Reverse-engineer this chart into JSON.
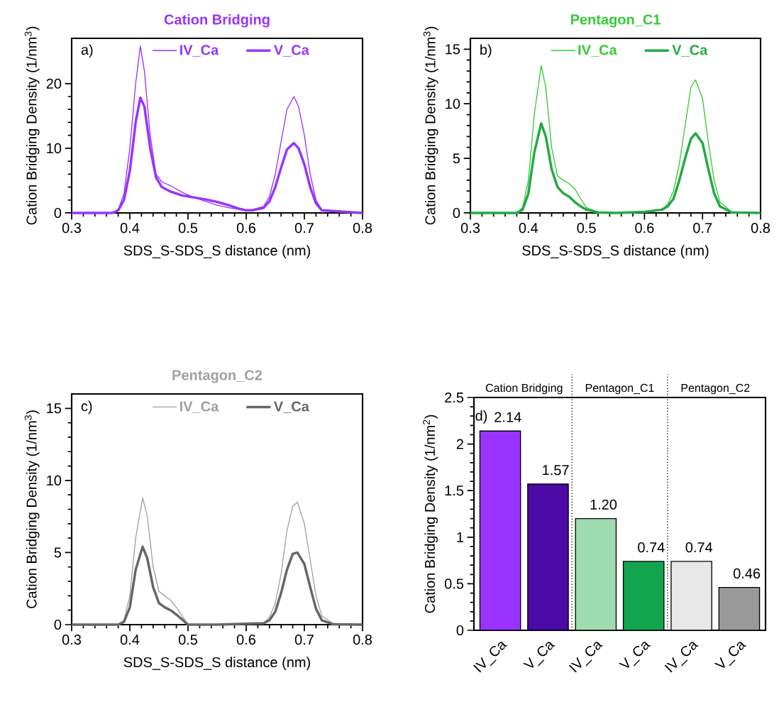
{
  "chart_data": [
    {
      "type": "line",
      "title": "Cation Bridging",
      "xlabel": "SDS_S-SDS_S distance (nm)",
      "ylabel": "Cation Bridging Density (1/nm$^{3}$)",
      "x": [
        0.3,
        0.37,
        0.38,
        0.39,
        0.4,
        0.41,
        0.418,
        0.425,
        0.435,
        0.445,
        0.455,
        0.47,
        0.49,
        0.51,
        0.53,
        0.55,
        0.57,
        0.59,
        0.6,
        0.61,
        0.63,
        0.64,
        0.65,
        0.66,
        0.67,
        0.682,
        0.69,
        0.7,
        0.71,
        0.72,
        0.73,
        0.8
      ],
      "series": [
        {
          "name": "IV_Ca",
          "color": "#9933ff",
          "values": [
            0,
            0,
            0.5,
            3,
            10,
            20,
            25.8,
            22,
            12,
            6,
            4.8,
            4.2,
            3.2,
            2.4,
            1.8,
            1.2,
            0.8,
            0.5,
            0.4,
            0.5,
            1,
            2.5,
            6,
            11,
            16,
            18,
            16.5,
            12,
            6,
            2,
            0.5,
            0
          ]
        },
        {
          "name": "V_Ca",
          "color": "#9933ff",
          "values": [
            0,
            0,
            0.4,
            2,
            6.5,
            14,
            17.8,
            16.5,
            10,
            5.5,
            4.0,
            3.3,
            2.7,
            2.4,
            2.1,
            1.7,
            1.2,
            0.6,
            0.4,
            0.4,
            0.8,
            1.8,
            4,
            7,
            9.8,
            10.8,
            10,
            7.5,
            4,
            1.5,
            0.4,
            0
          ]
        }
      ],
      "xlim": [
        0.3,
        0.8
      ],
      "xticks": [
        0.3,
        0.4,
        0.5,
        0.6,
        0.7,
        0.8
      ],
      "ylim": [
        0,
        27
      ],
      "yticks": [
        0,
        10,
        20
      ],
      "legend": "top",
      "annotations": [
        "a)"
      ]
    },
    {
      "type": "line",
      "title": "Pentagon_C1",
      "xlabel": "SDS_S-SDS_S distance (nm)",
      "ylabel": "Cation Bridging Density (1/nm$^{3}$)",
      "x": [
        0.3,
        0.38,
        0.39,
        0.4,
        0.41,
        0.422,
        0.43,
        0.44,
        0.45,
        0.46,
        0.47,
        0.48,
        0.49,
        0.5,
        0.52,
        0.55,
        0.6,
        0.63,
        0.64,
        0.65,
        0.66,
        0.67,
        0.68,
        0.688,
        0.7,
        0.71,
        0.72,
        0.73,
        0.75,
        0.8
      ],
      "series": [
        {
          "name": "IV_Ca",
          "color": "#33cc33",
          "values": [
            0,
            0,
            0.5,
            3,
            9,
            13.5,
            11.5,
            6,
            3.4,
            3,
            2.7,
            2.2,
            1.3,
            0.5,
            0.05,
            0,
            0.1,
            0.3,
            0.8,
            2,
            4.5,
            8,
            11.5,
            12.2,
            10.5,
            6.5,
            3,
            1,
            0.1,
            0
          ]
        },
        {
          "name": "V_Ca",
          "color": "#22aa44",
          "values": [
            0,
            0,
            0.3,
            1.8,
            5.5,
            8.2,
            7,
            4,
            2.4,
            1.8,
            1.5,
            1.0,
            0.6,
            0.3,
            0.05,
            0,
            0.1,
            0.3,
            0.6,
            1.3,
            3,
            5,
            6.8,
            7.3,
            6.4,
            4,
            1.8,
            0.6,
            0.05,
            0
          ]
        }
      ],
      "xlim": [
        0.3,
        0.8
      ],
      "xticks": [
        0.3,
        0.4,
        0.5,
        0.6,
        0.7,
        0.8
      ],
      "ylim": [
        0,
        16
      ],
      "yticks": [
        0,
        5,
        10,
        15
      ],
      "legend": "top",
      "annotations": [
        "b)"
      ]
    },
    {
      "type": "line",
      "title": "Pentagon_C2",
      "xlabel": "SDS_S-SDS_S distance (nm)",
      "ylabel": "Cation Bridging Density (1/nm$^{3}$)",
      "x": [
        0.3,
        0.38,
        0.39,
        0.4,
        0.41,
        0.422,
        0.43,
        0.44,
        0.45,
        0.46,
        0.47,
        0.48,
        0.49,
        0.5,
        0.55,
        0.63,
        0.64,
        0.65,
        0.66,
        0.67,
        0.68,
        0.688,
        0.7,
        0.71,
        0.72,
        0.73,
        0.75,
        0.8
      ],
      "series": [
        {
          "name": "IV_Ca",
          "color": "#a0a0a0",
          "values": [
            0,
            0,
            0.3,
            2,
            6,
            8.8,
            7.5,
            4,
            2.3,
            2,
            1.7,
            1.2,
            0.6,
            0,
            0,
            0.1,
            0.5,
            1.5,
            3.5,
            6.5,
            8.2,
            8.5,
            7,
            4.5,
            2,
            0.6,
            0.05,
            0
          ]
        },
        {
          "name": "V_Ca",
          "color": "#666666",
          "values": [
            0,
            0,
            0.2,
            1.2,
            3.8,
            5.4,
            4.6,
            2.6,
            1.5,
            1.2,
            1.0,
            0.7,
            0.35,
            0,
            0,
            0.1,
            0.3,
            0.9,
            2.2,
            3.8,
            4.9,
            5,
            4.2,
            2.6,
            1.1,
            0.3,
            0.02,
            0
          ]
        }
      ],
      "xlim": [
        0.3,
        0.8
      ],
      "xticks": [
        0.3,
        0.4,
        0.5,
        0.6,
        0.7,
        0.8
      ],
      "ylim": [
        0,
        16
      ],
      "yticks": [
        0,
        5,
        10,
        15
      ],
      "legend": "top",
      "annotations": [
        "c)"
      ]
    },
    {
      "type": "bar",
      "ylabel": "Cation Bridging Density (1/nm$^{2}$)",
      "categories": [
        "IV_Ca",
        "V_Ca",
        "IV_Ca",
        "V_Ca",
        "IV_Ca",
        "V_Ca"
      ],
      "values": [
        2.14,
        1.57,
        1.2,
        0.74,
        0.74,
        0.46
      ],
      "colors": [
        "#9933ff",
        "#4b0aa6",
        "#9fdcb0",
        "#12a54f",
        "#e8e8e8",
        "#999999"
      ],
      "value_labels": [
        "2.14",
        "1.57",
        "1.20",
        "0.74",
        "0.74",
        "0.46"
      ],
      "ylim": [
        0,
        2.5
      ],
      "yticks": [
        0,
        0.5,
        1,
        1.5,
        2,
        2.5
      ],
      "annotations": [
        "d)",
        "Cation Bridging",
        "Pentagon_C1",
        "Pentagon_C2"
      ]
    }
  ]
}
